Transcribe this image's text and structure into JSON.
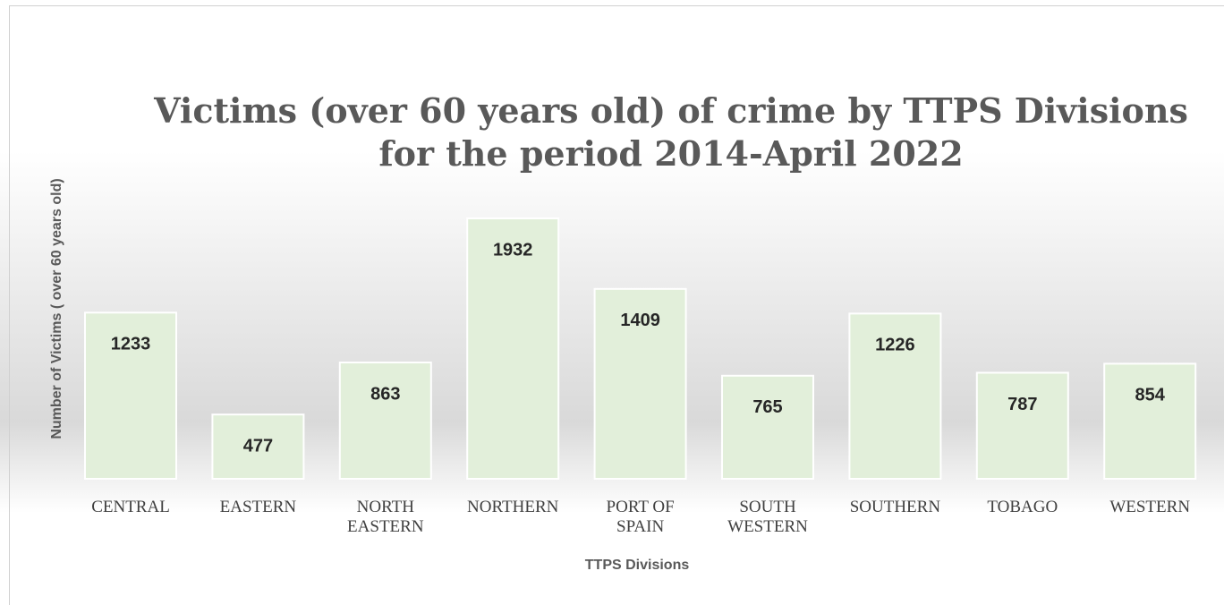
{
  "chart_data": {
    "type": "bar",
    "title": "Victims (over 60 years old) of crime by TTPS Divisions for the period 2014-April 2022",
    "x_label": "TTPS Divisions",
    "y_label": "Number of Victims ( over 60 years old)",
    "categories": [
      "CENTRAL",
      "EASTERN",
      "NORTH EASTERN",
      "NORTHERN",
      "PORT OF SPAIN",
      "SOUTH WESTERN",
      "SOUTHERN",
      "TOBAGO",
      "WESTERN"
    ],
    "values": [
      1233,
      477,
      863,
      1932,
      1409,
      765,
      1226,
      787,
      854
    ],
    "color": "#e2efda"
  }
}
